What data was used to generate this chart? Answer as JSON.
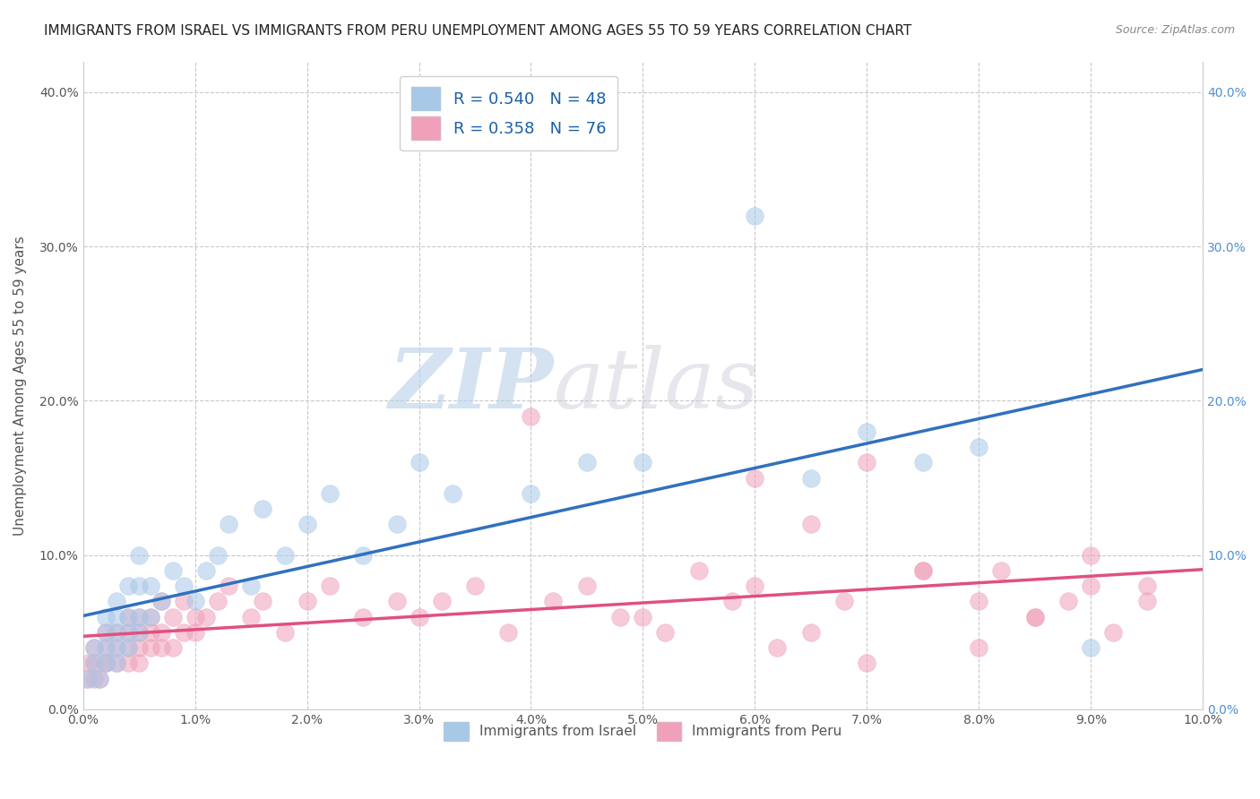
{
  "title": "IMMIGRANTS FROM ISRAEL VS IMMIGRANTS FROM PERU UNEMPLOYMENT AMONG AGES 55 TO 59 YEARS CORRELATION CHART",
  "source": "Source: ZipAtlas.com",
  "xlabel": "",
  "ylabel": "Unemployment Among Ages 55 to 59 years",
  "legend_label1": "Immigrants from Israel",
  "legend_label2": "Immigrants from Peru",
  "r1": 0.54,
  "n1": 48,
  "r2": 0.358,
  "n2": 76,
  "color1": "#a8c8e8",
  "color2": "#f0a0b8",
  "line_color1": "#3070c0",
  "line_color2": "#e05080",
  "xlim": [
    0.0,
    0.1
  ],
  "ylim": [
    0.0,
    0.42
  ],
  "xticks": [
    0.0,
    0.01,
    0.02,
    0.03,
    0.04,
    0.05,
    0.06,
    0.07,
    0.08,
    0.09,
    0.1
  ],
  "yticks": [
    0.0,
    0.1,
    0.2,
    0.3,
    0.4
  ],
  "background_color": "#ffffff",
  "watermark_text": "ZIP",
  "watermark_text2": "atlas",
  "israel_x": [
    0.0005,
    0.001,
    0.001,
    0.0015,
    0.002,
    0.002,
    0.002,
    0.002,
    0.003,
    0.003,
    0.003,
    0.003,
    0.003,
    0.004,
    0.004,
    0.004,
    0.004,
    0.005,
    0.005,
    0.005,
    0.005,
    0.006,
    0.006,
    0.007,
    0.008,
    0.009,
    0.01,
    0.011,
    0.012,
    0.013,
    0.015,
    0.016,
    0.018,
    0.02,
    0.022,
    0.025,
    0.028,
    0.03,
    0.033,
    0.04,
    0.045,
    0.05,
    0.06,
    0.065,
    0.07,
    0.075,
    0.08,
    0.09
  ],
  "israel_y": [
    0.02,
    0.03,
    0.04,
    0.02,
    0.03,
    0.04,
    0.05,
    0.06,
    0.03,
    0.04,
    0.05,
    0.06,
    0.07,
    0.04,
    0.05,
    0.06,
    0.08,
    0.05,
    0.06,
    0.08,
    0.1,
    0.06,
    0.08,
    0.07,
    0.09,
    0.08,
    0.07,
    0.09,
    0.1,
    0.12,
    0.08,
    0.13,
    0.1,
    0.12,
    0.14,
    0.1,
    0.12,
    0.16,
    0.14,
    0.14,
    0.16,
    0.16,
    0.32,
    0.15,
    0.18,
    0.16,
    0.17,
    0.04
  ],
  "peru_x": [
    0.0003,
    0.0005,
    0.001,
    0.001,
    0.001,
    0.0015,
    0.002,
    0.002,
    0.002,
    0.002,
    0.003,
    0.003,
    0.003,
    0.004,
    0.004,
    0.004,
    0.004,
    0.005,
    0.005,
    0.005,
    0.005,
    0.006,
    0.006,
    0.006,
    0.007,
    0.007,
    0.007,
    0.008,
    0.008,
    0.009,
    0.009,
    0.01,
    0.01,
    0.011,
    0.012,
    0.013,
    0.015,
    0.016,
    0.018,
    0.02,
    0.022,
    0.025,
    0.028,
    0.03,
    0.032,
    0.035,
    0.038,
    0.04,
    0.042,
    0.045,
    0.048,
    0.05,
    0.052,
    0.055,
    0.058,
    0.06,
    0.062,
    0.065,
    0.068,
    0.07,
    0.075,
    0.08,
    0.082,
    0.085,
    0.088,
    0.09,
    0.092,
    0.095,
    0.06,
    0.065,
    0.07,
    0.075,
    0.08,
    0.085,
    0.09,
    0.095
  ],
  "peru_y": [
    0.02,
    0.03,
    0.02,
    0.03,
    0.04,
    0.02,
    0.03,
    0.04,
    0.03,
    0.05,
    0.03,
    0.04,
    0.05,
    0.03,
    0.04,
    0.05,
    0.06,
    0.04,
    0.05,
    0.03,
    0.06,
    0.04,
    0.05,
    0.06,
    0.04,
    0.05,
    0.07,
    0.04,
    0.06,
    0.05,
    0.07,
    0.05,
    0.06,
    0.06,
    0.07,
    0.08,
    0.06,
    0.07,
    0.05,
    0.07,
    0.08,
    0.06,
    0.07,
    0.06,
    0.07,
    0.08,
    0.05,
    0.19,
    0.07,
    0.08,
    0.06,
    0.06,
    0.05,
    0.09,
    0.07,
    0.08,
    0.04,
    0.05,
    0.07,
    0.03,
    0.09,
    0.04,
    0.09,
    0.06,
    0.07,
    0.08,
    0.05,
    0.07,
    0.15,
    0.12,
    0.16,
    0.09,
    0.07,
    0.06,
    0.1,
    0.08
  ]
}
